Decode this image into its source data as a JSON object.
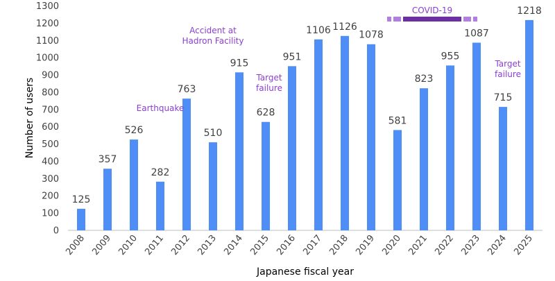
{
  "chart_data": {
    "type": "bar",
    "categories": [
      "2008",
      "2009",
      "2010",
      "2011",
      "2012",
      "2013",
      "2014",
      "2015",
      "2016",
      "2017",
      "2018",
      "2019",
      "2020",
      "2021",
      "2022",
      "2023",
      "2024",
      "2025"
    ],
    "values": [
      125,
      357,
      526,
      282,
      763,
      510,
      915,
      628,
      951,
      1106,
      1126,
      1078,
      581,
      823,
      955,
      1087,
      715,
      1218
    ],
    "title": "",
    "xlabel": "Japanese fiscal year",
    "ylabel": "Number of users",
    "ylim": [
      0,
      1300
    ],
    "yticks": [
      0,
      100,
      200,
      300,
      400,
      500,
      600,
      700,
      800,
      900,
      1000,
      1100,
      1200,
      1300
    ],
    "grid": false,
    "bar_color": "#4f8ef7",
    "annotations": [
      {
        "lines": [
          "Earthquake"
        ],
        "near": "2011"
      },
      {
        "lines": [
          "Accident at",
          "Hadron Facility"
        ],
        "near": "2013"
      },
      {
        "lines": [
          "Target",
          "failure"
        ],
        "near": "2015"
      },
      {
        "lines": [
          "Target",
          "failure"
        ],
        "near": "2024"
      }
    ],
    "annotation_color": "#8a3fd1",
    "covid_period": {
      "label": "COVID-19",
      "from": "2020",
      "to": "2023",
      "bar_color": "#6b2fa0",
      "dash_color": "#b07fe0"
    }
  }
}
